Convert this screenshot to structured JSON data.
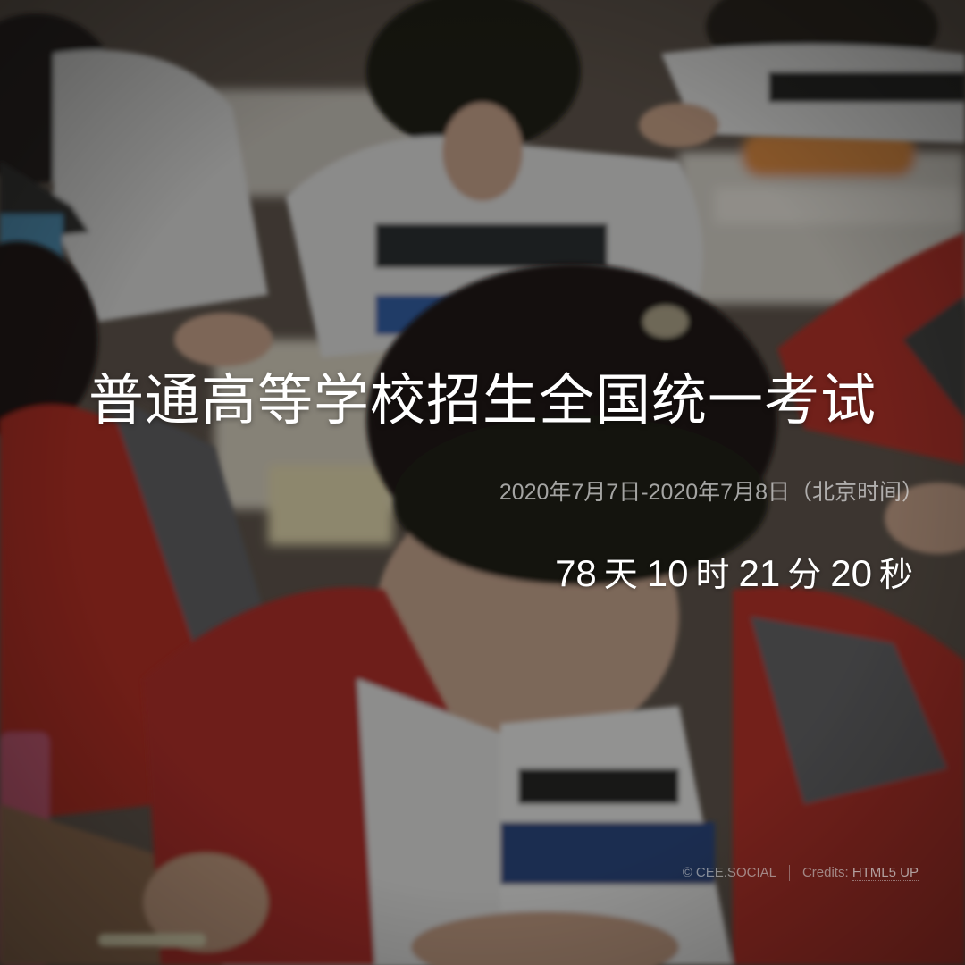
{
  "header": {
    "title": "普通高等学校招生全国统一考试"
  },
  "exam": {
    "dates": "2020年7月7日-2020年7月8日（北京时间）"
  },
  "countdown": {
    "days": "78",
    "days_unit": "天",
    "hours": "10",
    "hours_unit": "时",
    "minutes": "21",
    "minutes_unit": "分",
    "seconds": "20",
    "seconds_unit": "秒"
  },
  "footer": {
    "copyright": "© CEE.SOCIAL",
    "credits_label": "Credits:",
    "credits_link": "HTML5 UP"
  },
  "colors": {
    "overlay": "#14120f",
    "text_primary": "#ffffff",
    "text_muted": "#d0d0d0",
    "jacket_red": "#b3241f",
    "uniform_white": "#d9d9d9",
    "stripe_blue": "#1f3f7a",
    "desk_wood": "#8a6a4a"
  }
}
